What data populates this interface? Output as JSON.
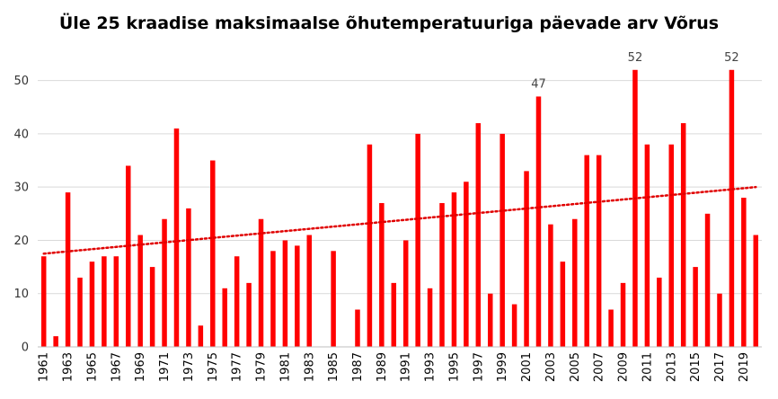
{
  "chart_data": {
    "type": "bar",
    "title": "Üle 25 kraadise maksimaalse õhutemperatuuriga päevade arv Võrus",
    "xlabel": "",
    "ylabel": "",
    "ylim": [
      0,
      55
    ],
    "yticks": [
      0,
      10,
      20,
      30,
      40,
      50
    ],
    "grid": true,
    "bar_color": "#ff0000",
    "trend_color": "#e00000",
    "trendline": {
      "type": "linear",
      "style": "dotted",
      "start": 17.5,
      "end": 30
    },
    "categories": [
      "1961",
      "1962",
      "1963",
      "1964",
      "1965",
      "1966",
      "1967",
      "1968",
      "1969",
      "1970",
      "1971",
      "1972",
      "1973",
      "1974",
      "1975",
      "1976",
      "1977",
      "1978",
      "1979",
      "1980",
      "1981",
      "1982",
      "1983",
      "1984",
      "1985",
      "1986",
      "1987",
      "1988",
      "1989",
      "1990",
      "1991",
      "1992",
      "1993",
      "1994",
      "1995",
      "1996",
      "1997",
      "1998",
      "1999",
      "2000",
      "2001",
      "2002",
      "2003",
      "2004",
      "2005",
      "2006",
      "2007",
      "2008",
      "2009",
      "2010",
      "2011",
      "2012",
      "2013",
      "2014",
      "2015",
      "2016",
      "2017",
      "2018",
      "2019",
      "2020"
    ],
    "values": [
      17,
      2,
      29,
      13,
      16,
      17,
      17,
      34,
      21,
      15,
      24,
      41,
      26,
      4,
      35,
      11,
      17,
      12,
      24,
      18,
      20,
      19,
      21,
      null,
      18,
      null,
      7,
      38,
      27,
      12,
      20,
      40,
      11,
      27,
      29,
      31,
      42,
      10,
      40,
      8,
      33,
      47,
      23,
      16,
      24,
      36,
      36,
      7,
      12,
      52,
      38,
      13,
      38,
      42,
      15,
      25,
      10,
      52,
      28,
      21
    ],
    "tick_labels": [
      "1961",
      "1963",
      "1965",
      "1967",
      "1969",
      "1971",
      "1973",
      "1975",
      "1977",
      "1979",
      "1981",
      "1983",
      "1985",
      "1987",
      "1989",
      "1991",
      "1993",
      "1995",
      "1997",
      "1999",
      "2001",
      "2003",
      "2005",
      "2007",
      "2009",
      "2011",
      "2013",
      "2015",
      "2017",
      "2019"
    ],
    "data_labels": [
      {
        "category": "2002",
        "text": "47"
      },
      {
        "category": "2010",
        "text": "52"
      },
      {
        "category": "2018",
        "text": "52"
      }
    ]
  }
}
